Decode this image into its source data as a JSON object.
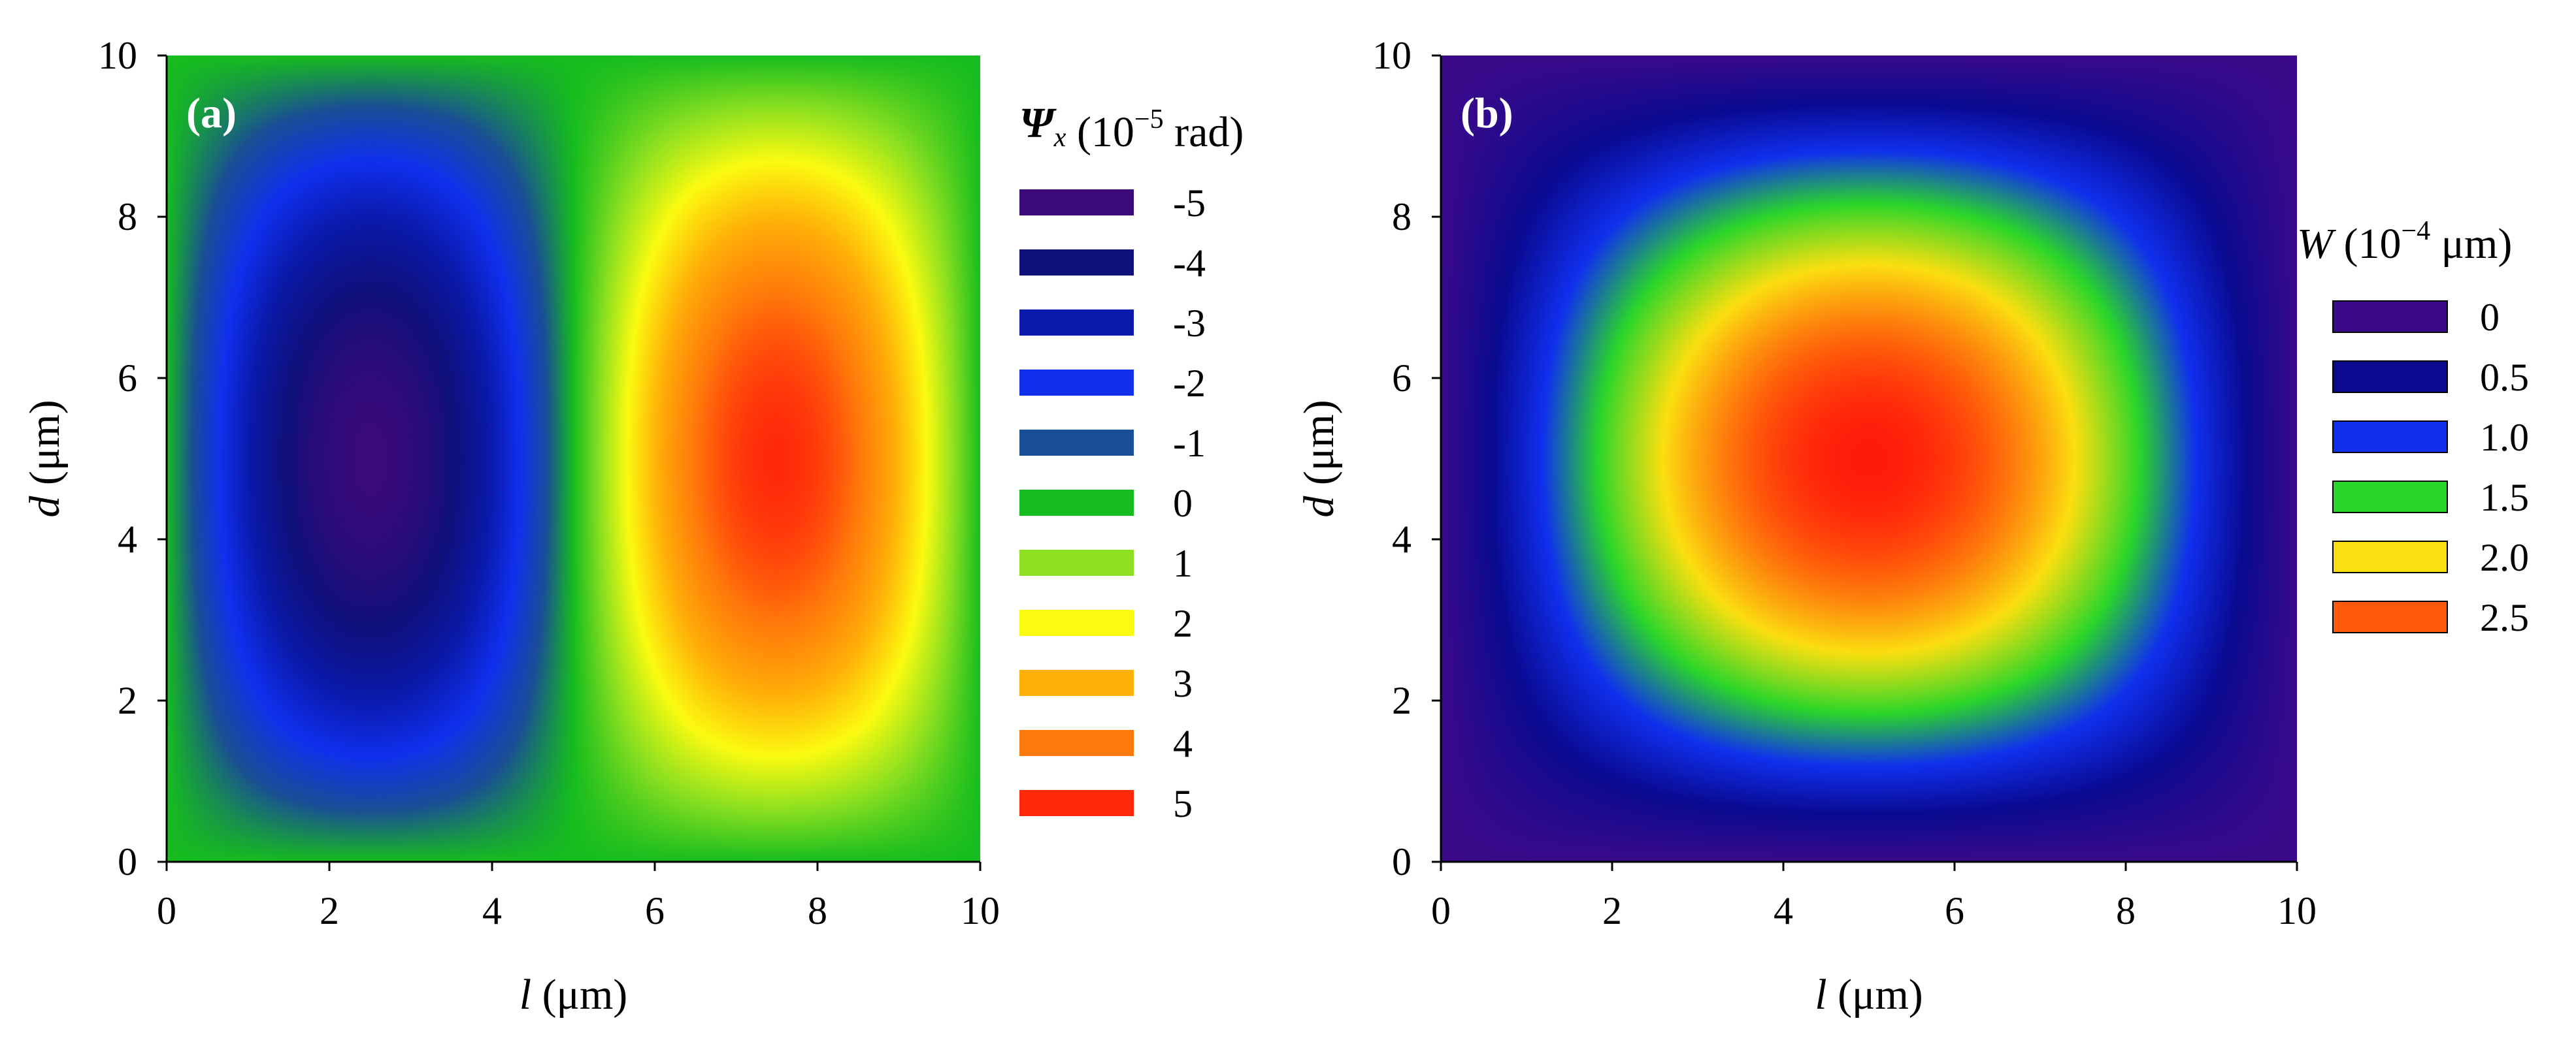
{
  "chart_data": [
    {
      "type": "heatmap",
      "panel_label": "(a)",
      "field": "Psi_x = A * sin(2*pi*l/10) * sin(pi*d/10)",
      "amplitude": -5,
      "xlabel_var": "l",
      "xlabel_unit": " (μm)",
      "ylabel_var": "d",
      "ylabel_unit": " (μm)",
      "xlim": [
        0,
        10
      ],
      "ylim": [
        0,
        10
      ],
      "xticks": [
        "0",
        "2",
        "4",
        "6",
        "8",
        "10"
      ],
      "yticks": [
        "0",
        "2",
        "4",
        "6",
        "8",
        "10"
      ],
      "xtick_values": [
        0,
        2,
        4,
        6,
        8,
        10
      ],
      "ytick_values": [
        0,
        2,
        4,
        6,
        8,
        10
      ],
      "legend": {
        "title_symbol": "Ψ",
        "title_sub": "x",
        "title_pre": " (10",
        "title_exp": "−5",
        "title_post": " rad)",
        "entries": [
          {
            "label": "-5",
            "value": -5,
            "color": "#3a0a7a"
          },
          {
            "label": "-4",
            "value": -4,
            "color": "#10107a"
          },
          {
            "label": "-3",
            "value": -3,
            "color": "#0a1aaa"
          },
          {
            "label": "-2",
            "value": -2,
            "color": "#1030ee"
          },
          {
            "label": "-1",
            "value": -1,
            "color": "#1a4e96"
          },
          {
            "label": "0",
            "value": 0,
            "color": "#16bd1e"
          },
          {
            "label": "1",
            "value": 1,
            "color": "#8ce020"
          },
          {
            "label": "2",
            "value": 2,
            "color": "#fbfb10"
          },
          {
            "label": "3",
            "value": 3,
            "color": "#ffb108"
          },
          {
            "label": "4",
            "value": 4,
            "color": "#ff7a0a"
          },
          {
            "label": "5",
            "value": 5,
            "color": "#ff2a0a"
          }
        ]
      }
    },
    {
      "type": "heatmap",
      "panel_label": "(b)",
      "field": "W = A * sin(pi*l/10) * sin(pi*d/10)",
      "amplitude": 2.75,
      "xlabel_var": "l",
      "xlabel_unit": " (μm)",
      "ylabel_var": "d",
      "ylabel_unit": " (μm)",
      "xlim": [
        0,
        10
      ],
      "ylim": [
        0,
        10
      ],
      "xticks": [
        "0",
        "2",
        "4",
        "6",
        "8",
        "10"
      ],
      "yticks": [
        "0",
        "2",
        "4",
        "6",
        "8",
        "10"
      ],
      "xtick_values": [
        0,
        2,
        4,
        6,
        8,
        10
      ],
      "ytick_values": [
        0,
        2,
        4,
        6,
        8,
        10
      ],
      "legend": {
        "title_symbol": "W",
        "title_sub": "",
        "title_pre": " (10",
        "title_exp": "−4",
        "title_post": " μm)",
        "entries": [
          {
            "label": "0",
            "value": 0,
            "color": "#3a0a8a"
          },
          {
            "label": "0.5",
            "value": 0.5,
            "color": "#0a0a90"
          },
          {
            "label": "1.0",
            "value": 1.0,
            "color": "#1030ee"
          },
          {
            "label": "1.5",
            "value": 1.5,
            "color": "#2ad62a"
          },
          {
            "label": "2.0",
            "value": 2.0,
            "color": "#fbdf10"
          },
          {
            "label": "2.5",
            "value": 2.5,
            "color": "#ff5a0a"
          }
        ],
        "extra_colors": [
          {
            "value": 2.75,
            "color": "#ff1a0a"
          }
        ]
      }
    }
  ]
}
